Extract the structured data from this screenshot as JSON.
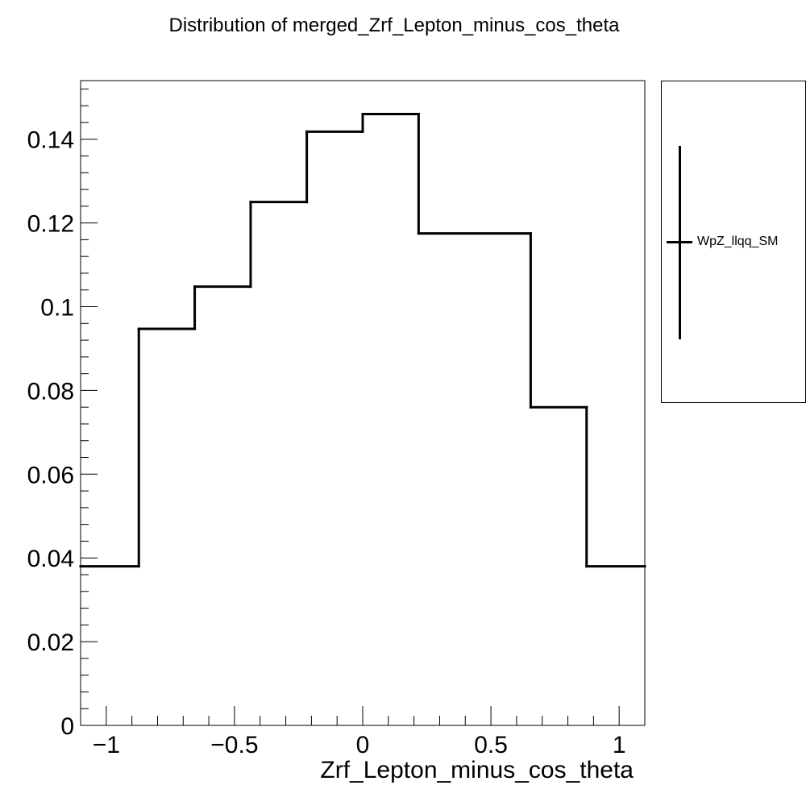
{
  "chart_data": {
    "type": "step-histogram",
    "title": "Distribution of merged_Zrf_Lepton_minus_cos_theta",
    "xlabel": "Zrf_Lepton_minus_cos_theta",
    "ylabel": "",
    "xlim": [
      -1.1,
      1.1
    ],
    "ylim": [
      0,
      0.154
    ],
    "x_ticks": [
      -1,
      -0.5,
      0,
      0.5,
      1
    ],
    "x_tick_labels": [
      "−1",
      "−0.5",
      "0",
      "0.5",
      "1"
    ],
    "y_ticks": [
      0,
      0.02,
      0.04,
      0.06,
      0.08,
      0.1,
      0.12,
      0.14
    ],
    "y_tick_labels": [
      "0",
      "0.02",
      "0.04",
      "0.06",
      "0.08",
      "0.1",
      "0.12",
      "0.14"
    ],
    "bin_edges": [
      -1.1,
      -0.873,
      -0.655,
      -0.437,
      -0.218,
      0.0,
      0.218,
      0.655,
      0.873,
      1.1
    ],
    "series": [
      {
        "name": "WpZ_llqq_SM",
        "values": [
          0.038,
          0.0947,
          0.1048,
          0.125,
          0.1418,
          0.146,
          0.1175,
          0.076,
          0.038
        ]
      }
    ],
    "legend_position": "right",
    "grid": false,
    "line_color": "#000000"
  }
}
